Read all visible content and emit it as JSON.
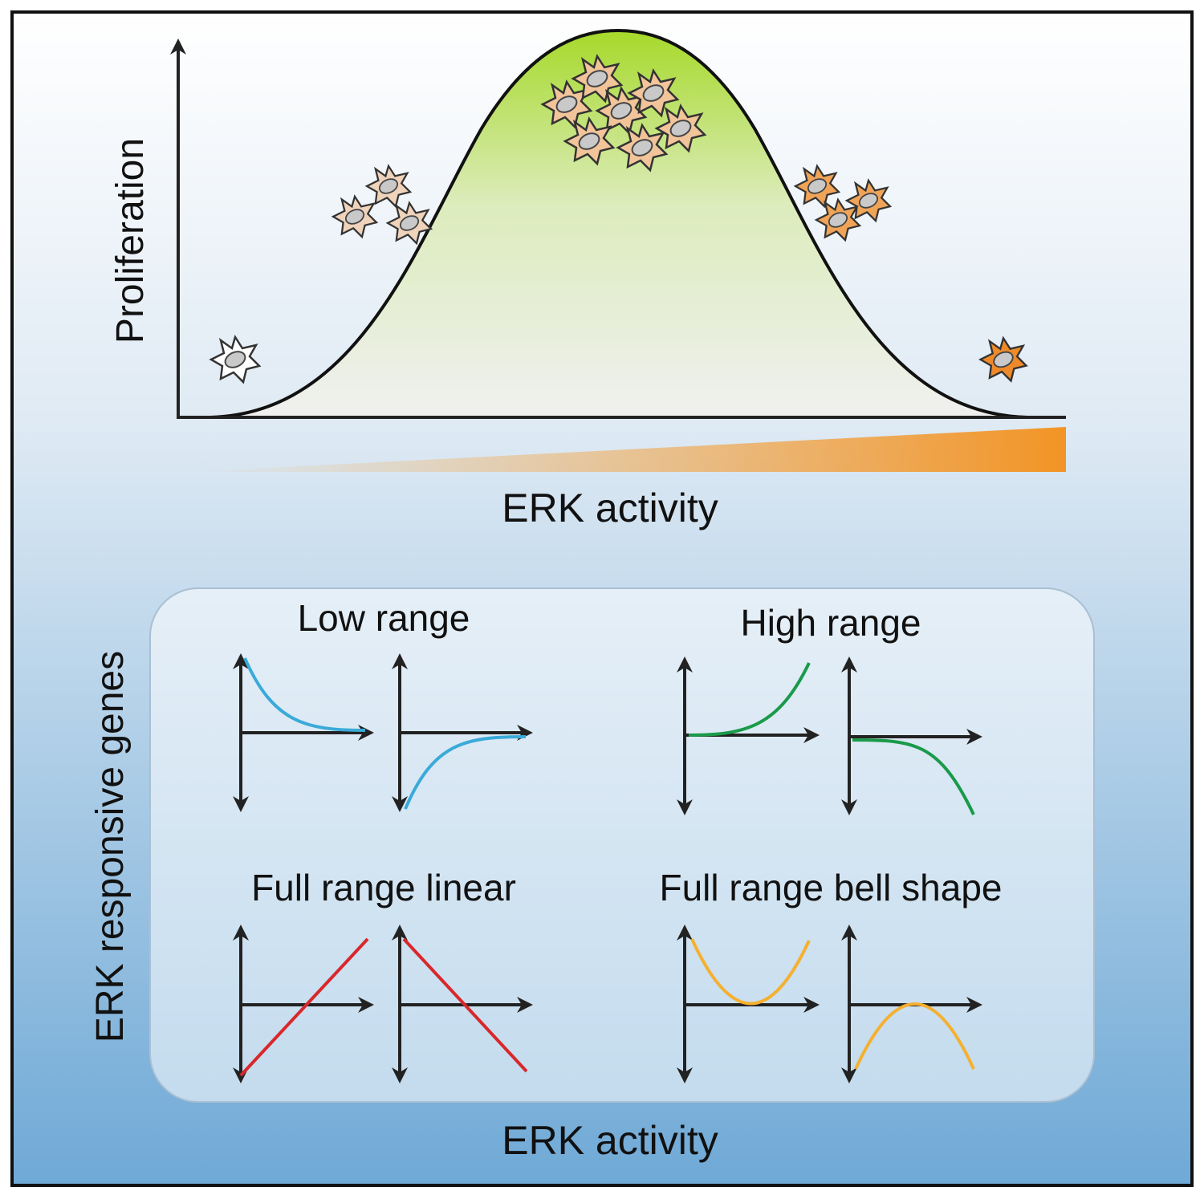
{
  "top": {
    "y_label": "Proliferation",
    "x_label": "ERK activity"
  },
  "bottom": {
    "y_label": "ERK responsive genes",
    "panels": [
      {
        "title": "Low range"
      },
      {
        "title": "High range"
      },
      {
        "title": "Full range linear"
      },
      {
        "title": "Full range bell shape"
      }
    ],
    "x_label": "ERK activity"
  }
}
